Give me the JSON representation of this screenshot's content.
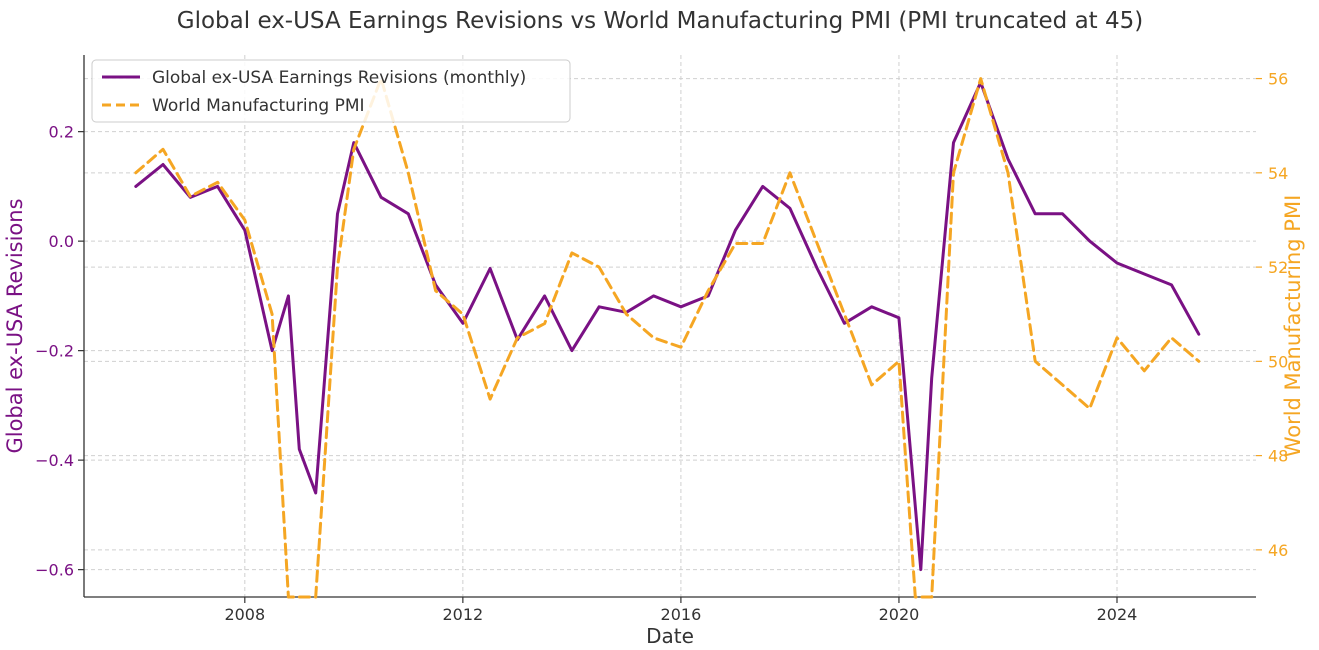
{
  "chart_data": {
    "type": "line",
    "title": "Global ex-USA Earnings Revisions vs World Manufacturing PMI (PMI truncated at 45)",
    "xlabel": "Date",
    "ylabel_left": "Global ex-USA Revisions",
    "ylabel_right": "World Manufacturing PMI",
    "xlim": [
      2005.05,
      2026.55
    ],
    "ylim_left": [
      -0.65,
      0.34
    ],
    "ylim_right": [
      45,
      56.5
    ],
    "x_ticks": [
      2008,
      2012,
      2016,
      2020,
      2024
    ],
    "x_tick_labels": [
      "2008",
      "2012",
      "2016",
      "2020",
      "2024"
    ],
    "y_left_ticks": [
      0.2,
      0.0,
      -0.2,
      -0.4,
      -0.6
    ],
    "y_left_tick_labels": [
      "0.2",
      "0.0",
      "−0.2",
      "−0.4",
      "−0.6"
    ],
    "y_right_ticks": [
      56,
      54,
      52,
      50,
      48,
      46
    ],
    "y_right_tick_labels": [
      "56",
      "54",
      "52",
      "50",
      "48",
      "46"
    ],
    "grid": true,
    "legend_position": "top-left",
    "colors": {
      "revisions": "#7a1184",
      "pmi": "#f5a623",
      "text": "#333333",
      "grid": "#d0d0d0"
    },
    "series": [
      {
        "name": "Global ex-USA Earnings Revisions (monthly)",
        "axis": "left",
        "style": "solid",
        "x": [
          2006.0,
          2006.5,
          2007.0,
          2007.5,
          2008.0,
          2008.5,
          2008.8,
          2009.0,
          2009.3,
          2009.7,
          2010.0,
          2010.5,
          2011.0,
          2011.5,
          2012.0,
          2012.5,
          2013.0,
          2013.5,
          2014.0,
          2014.5,
          2015.0,
          2015.5,
          2016.0,
          2016.5,
          2017.0,
          2017.5,
          2018.0,
          2018.5,
          2019.0,
          2019.5,
          2020.0,
          2020.4,
          2020.6,
          2021.0,
          2021.5,
          2022.0,
          2022.5,
          2023.0,
          2023.5,
          2024.0,
          2024.5,
          2025.0,
          2025.5
        ],
        "values": [
          0.1,
          0.14,
          0.08,
          0.1,
          0.02,
          -0.2,
          -0.1,
          -0.38,
          -0.46,
          0.05,
          0.18,
          0.08,
          0.05,
          -0.08,
          -0.15,
          -0.05,
          -0.18,
          -0.1,
          -0.2,
          -0.12,
          -0.13,
          -0.1,
          -0.12,
          -0.1,
          0.02,
          0.1,
          0.06,
          -0.05,
          -0.15,
          -0.12,
          -0.14,
          -0.6,
          -0.25,
          0.18,
          0.29,
          0.15,
          0.05,
          0.05,
          0.0,
          -0.04,
          -0.06,
          -0.08,
          -0.17
        ]
      },
      {
        "name": "World Manufacturing PMI",
        "axis": "right",
        "style": "dashed",
        "x": [
          2006.0,
          2006.5,
          2007.0,
          2007.5,
          2008.0,
          2008.5,
          2008.8,
          2009.3,
          2009.7,
          2010.0,
          2010.5,
          2011.0,
          2011.5,
          2012.0,
          2012.5,
          2013.0,
          2013.5,
          2014.0,
          2014.5,
          2015.0,
          2015.5,
          2016.0,
          2016.5,
          2017.0,
          2017.5,
          2018.0,
          2018.5,
          2019.0,
          2019.5,
          2020.0,
          2020.3,
          2020.6,
          2021.0,
          2021.5,
          2022.0,
          2022.5,
          2023.0,
          2023.5,
          2024.0,
          2024.5,
          2025.0,
          2025.5
        ],
        "values": [
          54.0,
          54.5,
          53.5,
          53.8,
          53.0,
          51.0,
          45.0,
          45.0,
          52.0,
          54.5,
          56.0,
          54.0,
          51.5,
          51.0,
          49.2,
          50.5,
          50.8,
          52.3,
          52.0,
          51.0,
          50.5,
          50.3,
          51.5,
          52.5,
          52.5,
          54.0,
          52.5,
          51.0,
          49.5,
          50.0,
          45.0,
          45.0,
          54.0,
          56.0,
          54.0,
          50.0,
          49.5,
          49.0,
          50.5,
          49.8,
          50.5,
          50.0
        ]
      }
    ]
  }
}
